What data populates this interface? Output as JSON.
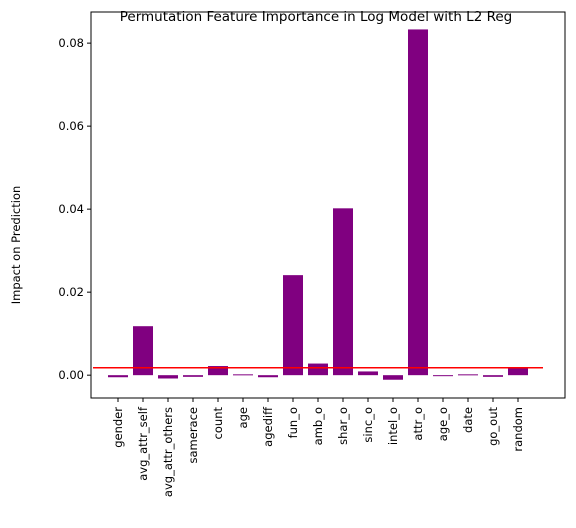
{
  "chart_data": {
    "type": "bar",
    "title": "Permutation Feature Importance in Log Model with L2 Reg",
    "xlabel": "",
    "ylabel": "Impact on Prediction",
    "categories": [
      "gender",
      "avg_attr_self",
      "avg_attr_others",
      "samerace",
      "count",
      "age",
      "agediff",
      "fun_o",
      "amb_o",
      "shar_o",
      "sinc_o",
      "intel_o",
      "attr_o",
      "age_o",
      "date",
      "go_out",
      "random"
    ],
    "values": [
      -0.0005,
      0.0118,
      -0.0008,
      -0.0004,
      0.0022,
      0.0002,
      -0.0005,
      0.0241,
      0.0028,
      0.0402,
      0.0009,
      -0.0011,
      0.0833,
      -0.0002,
      0.0002,
      -0.0004,
      0.0017
    ],
    "ylim": [
      -0.0055,
      0.0875
    ],
    "yticks": [
      0.0,
      0.02,
      0.04,
      0.06,
      0.08
    ],
    "ytick_labels": [
      "0.00",
      "0.02",
      "0.04",
      "0.06",
      "0.08"
    ],
    "reference_line": 0.0018,
    "bar_color": "#800080",
    "line_color": "#ff0000",
    "grid": false,
    "legend": false
  }
}
